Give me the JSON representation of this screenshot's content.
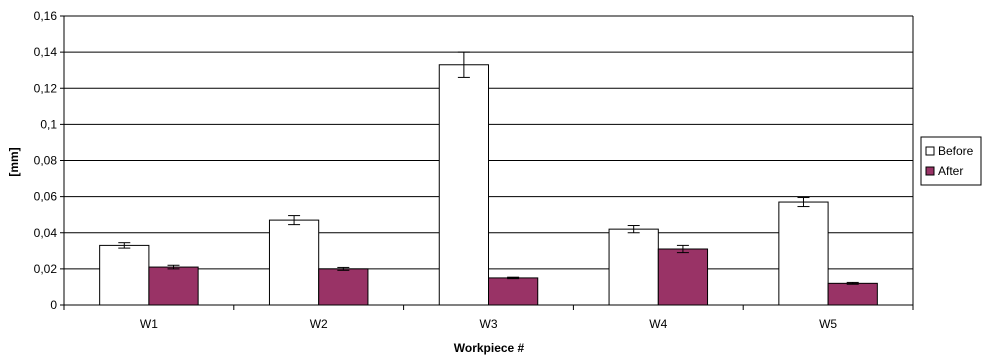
{
  "chart_data": {
    "type": "bar",
    "categories": [
      "W1",
      "W2",
      "W3",
      "W4",
      "W5"
    ],
    "series": [
      {
        "name": "Before",
        "color": "#ffffff",
        "values": [
          0.033,
          0.047,
          0.133,
          0.042,
          0.057
        ],
        "errors": [
          0.0015,
          0.0025,
          0.007,
          0.002,
          0.0025
        ]
      },
      {
        "name": "After",
        "color": "#993366",
        "values": [
          0.021,
          0.02,
          0.015,
          0.031,
          0.012
        ],
        "errors": [
          0.001,
          0.0008,
          0.0004,
          0.002,
          0.0005
        ]
      }
    ],
    "xlabel": "Workpiece #",
    "ylabel": "[mm]",
    "ylim": [
      0,
      0.16
    ],
    "yticks": [
      0,
      0.02,
      0.04,
      0.06,
      0.08,
      0.1,
      0.12,
      0.14,
      0.16
    ],
    "ytick_labels": [
      "0",
      "0,02",
      "0,04",
      "0,06",
      "0,08",
      "0,1",
      "0,12",
      "0,14",
      "0,16"
    ],
    "grid": true,
    "legend": "right"
  }
}
